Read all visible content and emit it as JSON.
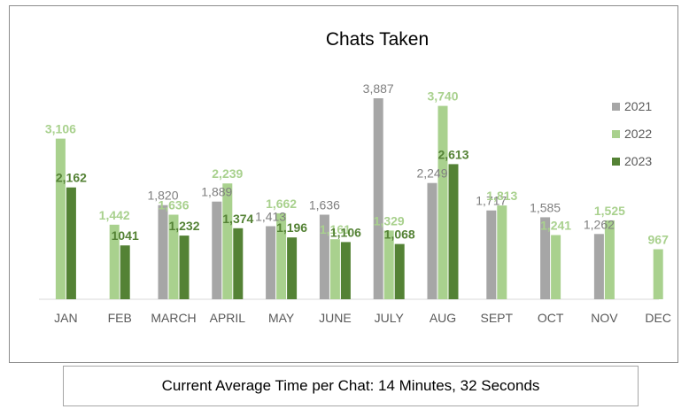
{
  "footer": {
    "text": "Current Average Time per Chat: 14 Minutes, 32 Seconds"
  },
  "chart_data": {
    "type": "bar",
    "title": "Chats Taken",
    "xlabel": "",
    "ylabel": "",
    "ylim": [
      0,
      4000
    ],
    "grid": false,
    "legend_position": "right",
    "categories": [
      "JAN",
      "FEB",
      "MARCH",
      "APRIL",
      "MAY",
      "JUNE",
      "JULY",
      "AUG",
      "SEPT",
      "OCT",
      "NOV",
      "DEC"
    ],
    "series": [
      {
        "name": "2021",
        "color": "#a6a6a6",
        "label_color": "#7f7f7f",
        "values": [
          null,
          null,
          1820,
          1889,
          1413,
          1636,
          3887,
          2249,
          1717,
          1585,
          1262,
          null
        ],
        "labels": [
          "",
          "",
          "1,820",
          "1,889",
          "1,413",
          "1,636",
          "3,887",
          "2,249",
          "1,717",
          "1,585",
          "1,262",
          ""
        ],
        "slots": [
          null,
          null,
          3,
          4,
          5,
          6,
          7,
          8,
          9,
          10,
          11,
          null
        ]
      },
      {
        "name": "2022",
        "color": "#a9d18e",
        "label_color": "#a9d18e",
        "values": [
          3106,
          1442,
          1636,
          2239,
          1662,
          1161,
          1329,
          3740,
          1813,
          1241,
          1525,
          967
        ],
        "labels": [
          "3,106",
          "1,442",
          "1,636",
          "2,239",
          "1,662",
          "1,161",
          "1,329",
          "3,740",
          "1,813",
          "1,241",
          "1,525",
          "967"
        ]
      },
      {
        "name": "2023",
        "color": "#548235",
        "label_color": "#548235",
        "values": [
          2162,
          1041,
          1232,
          1374,
          1196,
          1106,
          1068,
          2613,
          null,
          null,
          null,
          null
        ],
        "labels": [
          "2,162",
          "1041",
          "1,232",
          "1,374",
          "1,196",
          "1,106",
          "1,068",
          "2,613",
          "",
          "",
          "",
          ""
        ]
      }
    ]
  }
}
